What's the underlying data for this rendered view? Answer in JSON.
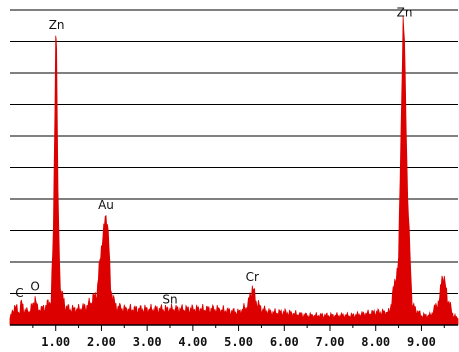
{
  "chart_data": {
    "type": "line",
    "title": "",
    "xlabel": "",
    "ylabel": "",
    "xlim": [
      0.0,
      9.8
    ],
    "ylim": [
      0,
      100
    ],
    "grid": true,
    "legend": "none",
    "x_ticks": [
      1.0,
      2.0,
      3.0,
      4.0,
      5.0,
      6.0,
      7.0,
      8.0,
      9.0
    ],
    "x_tick_labels": [
      "1.00",
      "2.00",
      "3.00",
      "4.00",
      "5.00",
      "6.00",
      "7.00",
      "8.00",
      "9.00"
    ],
    "series": [
      {
        "x": [
          0.0,
          0.1,
          0.2,
          0.25,
          0.3,
          0.4,
          0.5,
          0.55,
          0.6,
          0.7,
          0.8,
          0.9,
          0.95,
          1.0,
          1.02,
          1.05,
          1.1,
          1.2,
          1.3,
          1.5,
          1.7,
          1.9,
          2.0,
          2.1,
          2.15,
          2.2,
          2.3,
          2.5,
          3.0,
          3.5,
          4.0,
          4.5,
          5.0,
          5.2,
          5.3,
          5.4,
          5.5,
          5.7,
          6.0,
          6.5,
          7.0,
          7.5,
          8.0,
          8.3,
          8.5,
          8.55,
          8.6,
          8.63,
          8.7,
          8.8,
          9.0,
          9.2,
          9.4,
          9.45,
          9.5,
          9.6,
          9.7,
          9.8
        ],
        "y": [
          2,
          6,
          4,
          7,
          5,
          4,
          6,
          9,
          5,
          5,
          6,
          8,
          30,
          92,
          88,
          40,
          12,
          6,
          5,
          5,
          6,
          10,
          25,
          35,
          30,
          12,
          6,
          5,
          5,
          5,
          5,
          5,
          4,
          6,
          12,
          7,
          5,
          4,
          4,
          3,
          3,
          3,
          4,
          4,
          20,
          60,
          96,
          90,
          40,
          6,
          3,
          3,
          8,
          16,
          14,
          7,
          3,
          2
        ],
        "color": "#dd0000"
      }
    ],
    "annotations": [
      {
        "label": "C",
        "x": 0.25,
        "y": 7
      },
      {
        "label": "O",
        "x": 0.55,
        "y": 9
      },
      {
        "label": "Zn",
        "x": 1.02,
        "y": 92
      },
      {
        "label": "Au",
        "x": 2.1,
        "y": 35
      },
      {
        "label": "Sn",
        "x": 3.5,
        "y": 5
      },
      {
        "label": "Cr",
        "x": 5.3,
        "y": 12
      },
      {
        "label": "Zn",
        "x": 8.63,
        "y": 96
      }
    ]
  }
}
